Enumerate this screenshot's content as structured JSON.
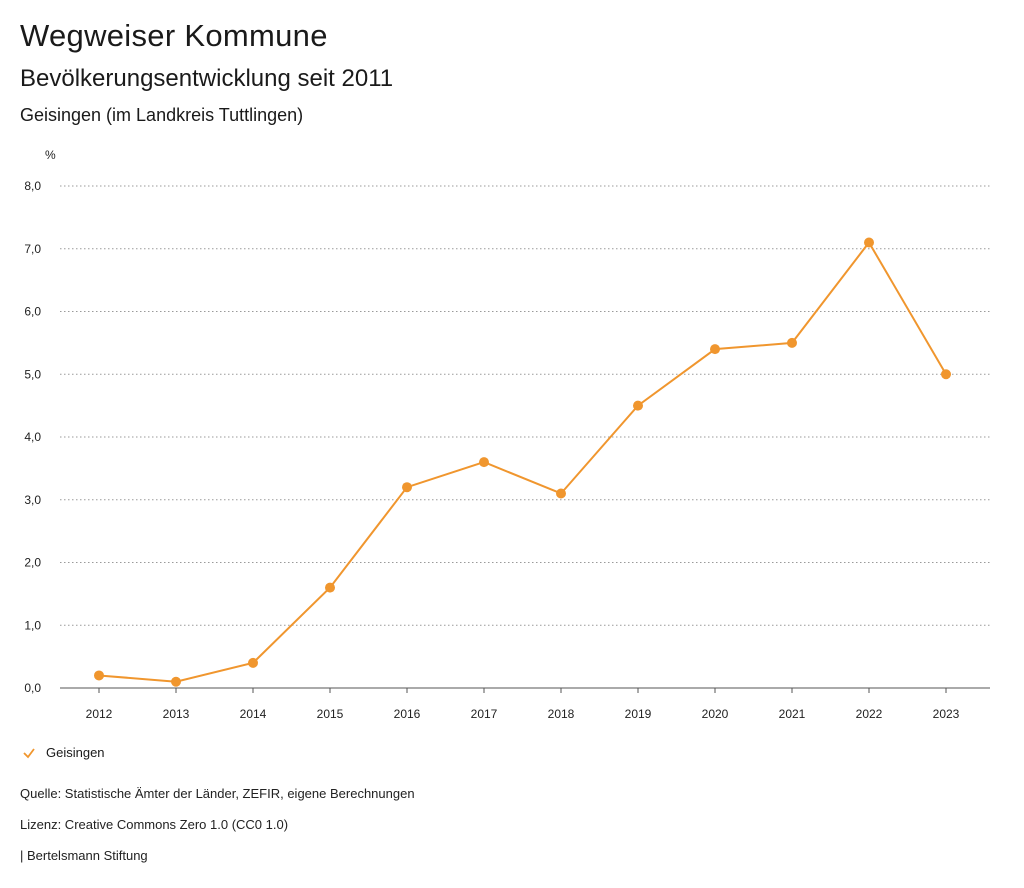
{
  "header": {
    "title": "Wegweiser Kommune",
    "subtitle": "Bevölkerungsentwicklung seit 2011",
    "region": "Geisingen (im Landkreis Tuttlingen)"
  },
  "legend": {
    "label": "Geisingen"
  },
  "footer": {
    "source": "Quelle: Statistische Ämter der Länder, ZEFIR, eigene Berechnungen",
    "license": "Lizenz: Creative Commons Zero 1.0 (CC0 1.0)",
    "organization": "| Bertelsmann Stiftung"
  },
  "chart_data": {
    "type": "line",
    "unit_label": "%",
    "x": [
      "2012",
      "2013",
      "2014",
      "2015",
      "2016",
      "2017",
      "2018",
      "2019",
      "2020",
      "2021",
      "2022",
      "2023"
    ],
    "series": [
      {
        "name": "Geisingen",
        "color": "#f0962e",
        "values": [
          0.2,
          0.1,
          0.4,
          1.6,
          3.2,
          3.6,
          3.1,
          4.5,
          5.4,
          5.5,
          7.1,
          5.0
        ]
      }
    ],
    "yticks": [
      "0,0",
      "1,0",
      "2,0",
      "3,0",
      "4,0",
      "5,0",
      "6,0",
      "7,0",
      "8,0"
    ],
    "ylim": [
      0,
      8
    ],
    "grid": true,
    "legend_position": "bottom-left"
  }
}
